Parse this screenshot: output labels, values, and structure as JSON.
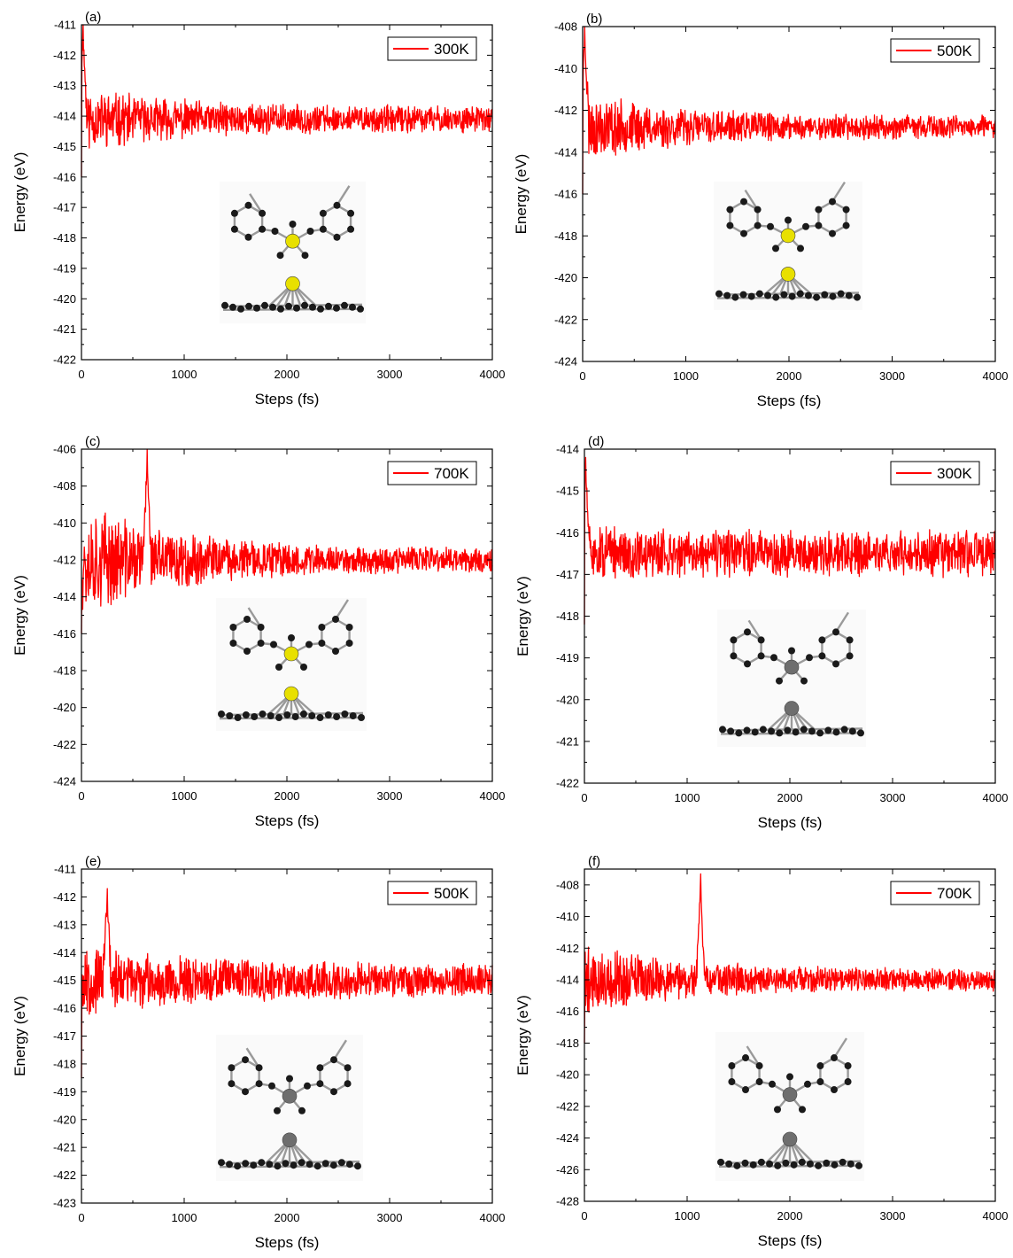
{
  "figure": {
    "background": "#ffffff",
    "series_color": "#ff0000",
    "inset_gold_atom": "#e8e000",
    "inset_gray_atom": "#6e6e6e",
    "inset_carbon_atom": "#1a1a1a"
  },
  "chart_data": [
    {
      "panel": "(a)",
      "type": "line",
      "xlabel": "Steps (fs)",
      "ylabel": "Energy (eV)",
      "xlim": [
        0,
        4000
      ],
      "ylim": [
        -422,
        -411
      ],
      "xticks": [
        0,
        1000,
        2000,
        3000,
        4000
      ],
      "yticks": [
        -422,
        -421,
        -420,
        -419,
        -418,
        -417,
        -416,
        -415,
        -414,
        -413,
        -412,
        -411
      ],
      "legend_position": "top-right",
      "series": [
        {
          "name": "300K",
          "color": "#ff0000",
          "start": -416.0,
          "peak_x": 15,
          "peak_y": -411.0,
          "mean": -414.1,
          "early_amp": 0.9,
          "late_amp": 0.35,
          "seed": 11
        }
      ],
      "inset_atom": "gold"
    },
    {
      "panel": "(b)",
      "type": "line",
      "xlabel": "Steps (fs)",
      "ylabel": "Energy (eV)",
      "xlim": [
        0,
        4000
      ],
      "ylim": [
        -424,
        -408
      ],
      "xticks": [
        0,
        1000,
        2000,
        3000,
        4000
      ],
      "yticks": [
        -424,
        -422,
        -420,
        -418,
        -416,
        -414,
        -412,
        -410,
        -408
      ],
      "legend_position": "top-right",
      "series": [
        {
          "name": "500K",
          "color": "#ff0000",
          "start": -416.0,
          "peak_x": 20,
          "peak_y": -408.0,
          "mean": -412.8,
          "early_amp": 1.4,
          "late_amp": 0.45,
          "seed": 23
        }
      ],
      "inset_atom": "gold"
    },
    {
      "panel": "(c)",
      "type": "line",
      "xlabel": "Steps (fs)",
      "ylabel": "Energy (eV)",
      "xlim": [
        0,
        4000
      ],
      "ylim": [
        -424,
        -406
      ],
      "xticks": [
        0,
        1000,
        2000,
        3000,
        4000
      ],
      "yticks": [
        -424,
        -422,
        -420,
        -418,
        -416,
        -414,
        -412,
        -410,
        -408,
        -406
      ],
      "legend_position": "top-right",
      "series": [
        {
          "name": "700K",
          "color": "#ff0000",
          "start": -416.0,
          "peak_x": 640,
          "peak_y": -406.0,
          "mean": -412.0,
          "early_amp": 2.6,
          "late_amp": 0.55,
          "seed": 37
        }
      ],
      "inset_atom": "gold"
    },
    {
      "panel": "(d)",
      "type": "line",
      "xlabel": "Steps (fs)",
      "ylabel": "Energy (eV)",
      "xlim": [
        0,
        4000
      ],
      "ylim": [
        -422,
        -414
      ],
      "xticks": [
        0,
        1000,
        2000,
        3000,
        4000
      ],
      "yticks": [
        -422,
        -421,
        -420,
        -419,
        -418,
        -417,
        -416,
        -415,
        -414
      ],
      "legend_position": "top-right",
      "series": [
        {
          "name": "300K",
          "color": "#ff0000",
          "start": -418.2,
          "peak_x": 10,
          "peak_y": -414.2,
          "mean": -416.5,
          "early_amp": 0.55,
          "late_amp": 0.45,
          "seed": 51
        }
      ],
      "inset_atom": "gray"
    },
    {
      "panel": "(e)",
      "type": "line",
      "xlabel": "Steps (fs)",
      "ylabel": "Energy (eV)",
      "xlim": [
        0,
        4000
      ],
      "ylim": [
        -423,
        -411
      ],
      "xticks": [
        0,
        1000,
        2000,
        3000,
        4000
      ],
      "yticks": [
        -423,
        -422,
        -421,
        -420,
        -419,
        -418,
        -417,
        -416,
        -415,
        -414,
        -413,
        -412,
        -411
      ],
      "legend_position": "top-right",
      "series": [
        {
          "name": "500K",
          "color": "#ff0000",
          "start": -418.5,
          "peak_x": 250,
          "peak_y": -411.7,
          "mean": -415.0,
          "early_amp": 1.1,
          "late_amp": 0.5,
          "seed": 67
        }
      ],
      "inset_atom": "gray"
    },
    {
      "panel": "(f)",
      "type": "line",
      "xlabel": "Steps (fs)",
      "ylabel": "Energy (eV)",
      "xlim": [
        0,
        4000
      ],
      "ylim": [
        -428,
        -407
      ],
      "xticks": [
        0,
        1000,
        2000,
        3000,
        4000
      ],
      "yticks": [
        -428,
        -426,
        -424,
        -422,
        -420,
        -418,
        -416,
        -414,
        -412,
        -410,
        -408
      ],
      "legend_position": "top-right",
      "series": [
        {
          "name": "700K",
          "color": "#ff0000",
          "start": -418.0,
          "peak_x": 1130,
          "peak_y": -407.3,
          "mean": -414.0,
          "early_amp": 2.0,
          "late_amp": 0.55,
          "seed": 79
        }
      ],
      "inset_atom": "gray"
    }
  ]
}
